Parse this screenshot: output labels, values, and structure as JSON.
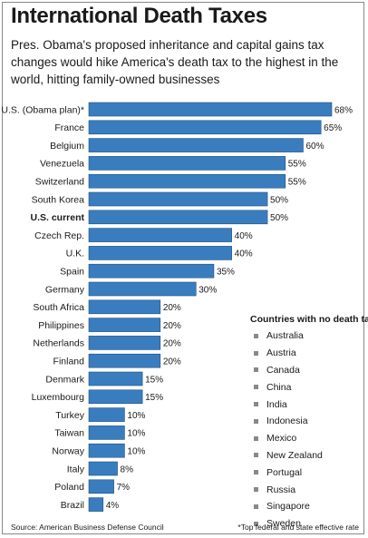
{
  "title": "International Death Taxes",
  "subtitle": "Pres. Obama's proposed inheritance and capital gains tax changes would hike America's death tax to the highest in the world, hitting family-owned businesses",
  "colors": {
    "bar": "#3a7dbf",
    "bar_stroke": "#1f4f80",
    "text": "#1a1a1a"
  },
  "chart_data": {
    "type": "bar",
    "orientation": "horizontal",
    "title": "International Death Taxes",
    "categories": [
      "U.S. (Obama plan)*",
      "France",
      "Belgium",
      "Venezuela",
      "Switzerland",
      "South Korea",
      "U.S. current",
      "Czech Rep.",
      "U.K.",
      "Spain",
      "Germany",
      "South Africa",
      "Philippines",
      "Netherlands",
      "Finland",
      "Denmark",
      "Luxembourg",
      "Turkey",
      "Taiwan",
      "Norway",
      "Italy",
      "Poland",
      "Brazil"
    ],
    "values": [
      68,
      65,
      60,
      55,
      55,
      50,
      50,
      40,
      40,
      35,
      30,
      20,
      20,
      20,
      20,
      15,
      15,
      10,
      10,
      10,
      8,
      7,
      4
    ],
    "value_labels": [
      "68%",
      "65%",
      "60%",
      "55%",
      "55%",
      "50%",
      "50%",
      "40%",
      "40%",
      "35%",
      "30%",
      "20%",
      "20%",
      "20%",
      "20%",
      "15%",
      "15%",
      "10%",
      "10%",
      "10%",
      "8%",
      "7%",
      "4%"
    ],
    "bold_categories": [
      "U.S. current"
    ],
    "xlim": [
      0,
      68
    ]
  },
  "no_death_tax": {
    "title": "Countries with no death tax",
    "items": [
      "Australia",
      "Austria",
      "Canada",
      "China",
      "India",
      "Indonesia",
      "Mexico",
      "New Zealand",
      "Portugal",
      "Russia",
      "Singapore",
      "Sweden"
    ]
  },
  "footer": {
    "source": "Source: American Business Defense Council",
    "note": "*Top federal and state effective rate"
  }
}
